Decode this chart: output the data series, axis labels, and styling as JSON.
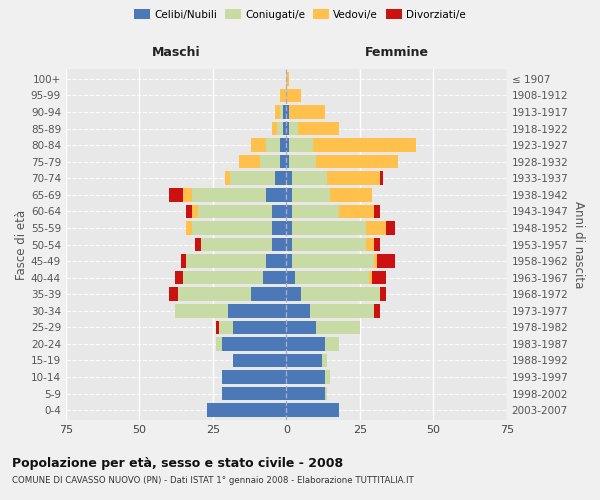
{
  "age_groups": [
    "0-4",
    "5-9",
    "10-14",
    "15-19",
    "20-24",
    "25-29",
    "30-34",
    "35-39",
    "40-44",
    "45-49",
    "50-54",
    "55-59",
    "60-64",
    "65-69",
    "70-74",
    "75-79",
    "80-84",
    "85-89",
    "90-94",
    "95-99",
    "100+"
  ],
  "birth_years": [
    "2003-2007",
    "1998-2002",
    "1993-1997",
    "1988-1992",
    "1983-1987",
    "1978-1982",
    "1973-1977",
    "1968-1972",
    "1963-1967",
    "1958-1962",
    "1953-1957",
    "1948-1952",
    "1943-1947",
    "1938-1942",
    "1933-1937",
    "1928-1932",
    "1923-1927",
    "1918-1922",
    "1913-1917",
    "1908-1912",
    "≤ 1907"
  ],
  "colors": {
    "celibe": "#4b79b8",
    "coniugato": "#c8dba4",
    "vedovo": "#ffc04c",
    "divorziato": "#cc1111"
  },
  "maschi": {
    "celibe": [
      27,
      22,
      22,
      18,
      22,
      18,
      20,
      12,
      8,
      7,
      5,
      5,
      5,
      7,
      4,
      2,
      2,
      1,
      1,
      0,
      0
    ],
    "coniugato": [
      0,
      0,
      0,
      0,
      2,
      5,
      18,
      25,
      27,
      27,
      24,
      27,
      25,
      25,
      15,
      7,
      5,
      2,
      1,
      0,
      0
    ],
    "vedovo": [
      0,
      0,
      0,
      0,
      0,
      0,
      0,
      0,
      0,
      0,
      0,
      2,
      2,
      3,
      2,
      7,
      5,
      2,
      2,
      2,
      0
    ],
    "divorziato": [
      0,
      0,
      0,
      0,
      0,
      1,
      0,
      3,
      3,
      2,
      2,
      0,
      2,
      5,
      0,
      0,
      0,
      0,
      0,
      0,
      0
    ]
  },
  "femmine": {
    "nubile": [
      18,
      13,
      13,
      12,
      13,
      10,
      8,
      5,
      3,
      2,
      2,
      2,
      2,
      2,
      2,
      1,
      1,
      1,
      1,
      0,
      0
    ],
    "coniugata": [
      0,
      1,
      2,
      2,
      5,
      15,
      22,
      27,
      25,
      28,
      25,
      25,
      16,
      13,
      12,
      9,
      8,
      3,
      0,
      0,
      0
    ],
    "vedova": [
      0,
      0,
      0,
      0,
      0,
      0,
      0,
      0,
      1,
      1,
      3,
      7,
      12,
      14,
      18,
      28,
      35,
      14,
      12,
      5,
      1
    ],
    "divorziata": [
      0,
      0,
      0,
      0,
      0,
      0,
      2,
      2,
      5,
      6,
      2,
      3,
      2,
      0,
      1,
      0,
      0,
      0,
      0,
      0,
      0
    ]
  },
  "xlim": 75,
  "title": "Popolazione per età, sesso e stato civile - 2008",
  "subtitle": "COMUNE DI CAVASSO NUOVO (PN) - Dati ISTAT 1° gennaio 2008 - Elaborazione TUTTITALIA.IT",
  "ylabel_left": "Fasce di età",
  "ylabel_right": "Anni di nascita",
  "background_color": "#f0f0f0",
  "plot_bg": "#e8e8e8",
  "grid_color": "#ffffff"
}
